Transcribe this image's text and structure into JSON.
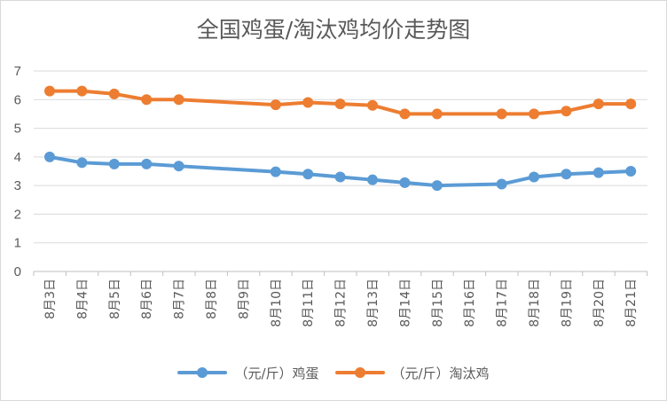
{
  "chart_data": {
    "type": "line",
    "title": "全国鸡蛋/淘汰鸡均价走势图",
    "categories": [
      "8月3日",
      "8月4日",
      "8月5日",
      "8月6日",
      "8月7日",
      "8月8日",
      "8月9日",
      "8月10日",
      "8月11日",
      "8月12日",
      "8月13日",
      "8月14日",
      "8月15日",
      "8月16日",
      "8月17日",
      "8月18日",
      "8月19日",
      "8月20日",
      "8月21日"
    ],
    "yticks": [
      "0",
      "1",
      "2",
      "3",
      "4",
      "5",
      "6",
      "7"
    ],
    "ylim": [
      0,
      7
    ],
    "grid": true,
    "legend_position": "bottom",
    "series": [
      {
        "name": "（元/斤）鸡蛋",
        "color": "#5b9bd5",
        "values": [
          4.0,
          3.8,
          3.75,
          3.75,
          3.68,
          null,
          null,
          3.48,
          3.4,
          3.3,
          3.2,
          3.1,
          3.0,
          null,
          3.05,
          3.3,
          3.4,
          3.45,
          3.5
        ]
      },
      {
        "name": "（元/斤）淘汰鸡",
        "color": "#ed7d31",
        "values": [
          6.3,
          6.3,
          6.2,
          6.0,
          6.0,
          null,
          null,
          5.82,
          5.9,
          5.85,
          5.8,
          5.5,
          5.5,
          null,
          5.5,
          5.5,
          5.6,
          5.85,
          5.85
        ]
      }
    ]
  }
}
